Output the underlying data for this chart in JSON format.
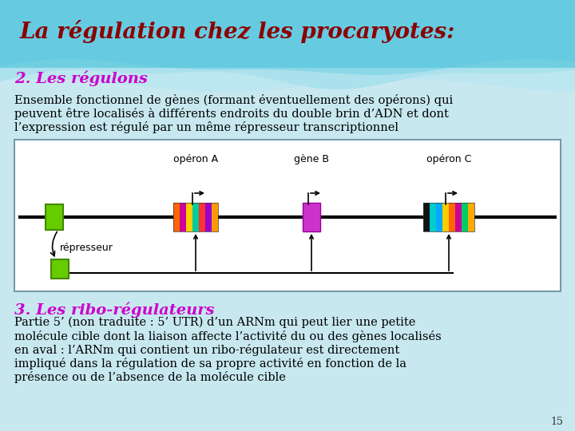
{
  "bg_color": "#c8e8f0",
  "title_text": "La régulation chez les procaryotes:",
  "title_color": "#8B0000",
  "title_fontsize": 20,
  "section2_title": "2. Les régulons",
  "section2_color": "#cc00cc",
  "section2_fontsize": 14,
  "section2_body": "Ensemble fonctionnel de gènes (formant éventuellement des opérons) qui\npeuvent être localisés à différents endroits du double brin d’ADN et dont\nl’expression est régulé par un même répresseur transcriptionnel",
  "section3_title": "3. Les ribo-régulateurs",
  "section3_color": "#cc00cc",
  "section3_fontsize": 14,
  "section3_body": "Partie 5’ (non traduite : 5’ UTR) d’un ARNm qui peut lier une petite\nmolécule cible dont la liaison affecte l’activité du ou des gènes localisés\nen aval : l’ARNm qui contient un ribo-régulateur est directement\nimpliqué dans la régulation de sa propre activité en fonction de la\nprésence ou de l’absence de la molécule cible",
  "body_color": "#000000",
  "body_fontsize": 10.5,
  "page_number": "15"
}
